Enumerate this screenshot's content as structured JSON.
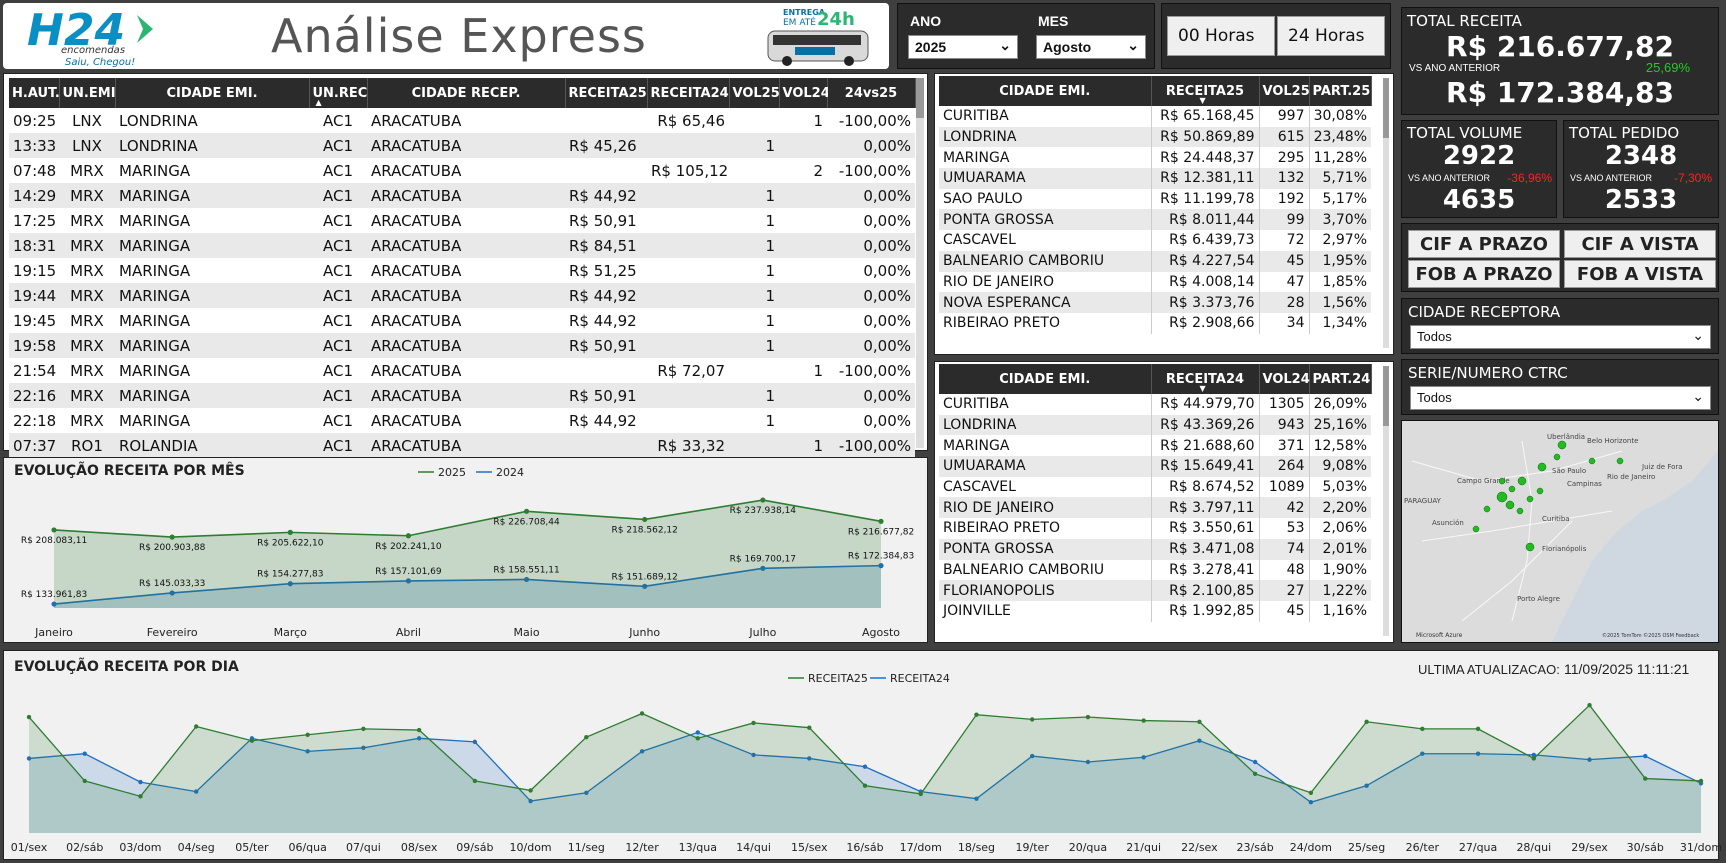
{
  "header": {
    "logo_text": "H24",
    "logo_sub": "encomendas",
    "logo_tag": "Saiu, Chegou!",
    "title": "Análise Express",
    "bus_promo_line1": "ENTREGA",
    "bus_promo_line2": "EM ATÉ",
    "bus_promo_hours": "24h"
  },
  "filters": {
    "ano_label": "ANO",
    "ano_value": "2025",
    "mes_label": "MES",
    "mes_value": "Agosto",
    "btn_00": "00 Horas",
    "btn_24": "24 Horas"
  },
  "kpis": {
    "receita_title": "TOTAL RECEITA",
    "receita_value": "R$ 216.677,82",
    "receita_vs_label": "VS ANO ANTERIOR",
    "receita_vs_pct": "25,69%",
    "receita_prev": "R$ 172.384,83",
    "volume_title": "TOTAL VOLUME",
    "volume_value": "2922",
    "volume_vs_label": "VS ANO ANTERIOR",
    "volume_vs_pct": "-36,96%",
    "volume_prev": "4635",
    "pedido_title": "TOTAL PEDIDO",
    "pedido_value": "2348",
    "pedido_vs_label": "VS ANO ANTERIOR",
    "pedido_vs_pct": "-7,30%",
    "pedido_prev": "2533",
    "colors": {
      "positive": "#22cc22",
      "negative": "#ff2222"
    }
  },
  "payment_buttons": [
    "CIF A PRAZO",
    "CIF A VISTA",
    "FOB A PRAZO",
    "FOB A VISTA"
  ],
  "cidade_receptora": {
    "label": "CIDADE RECEPTORA",
    "value": "Todos"
  },
  "serie_ctrc": {
    "label": "SERIE/NUMERO CTRC",
    "value": "Todos"
  },
  "map": {
    "credit_left": "Microsoft Azure",
    "credit_right": "©2025 TomTom ©2025 OSM Feedback",
    "labels": [
      "Uberlândia",
      "Belo Horizonte",
      "Campo Grande",
      "São Paulo",
      "Campinas",
      "Rio de Janeiro",
      "PARAGUAY",
      "Asunción",
      "Curitiba",
      "Florianópolis",
      "Porto Alegre",
      "Juiz de Fora"
    ]
  },
  "main_table": {
    "columns": [
      "H.AUT.",
      "UN.EMI.",
      "CIDADE EMI.",
      "UN.REC.",
      "CIDADE RECEP.",
      "RECEITA25",
      "RECEITA24",
      "VOL25",
      "VOL24",
      "24vs25"
    ],
    "rows": [
      [
        "09:25",
        "LNX",
        "LONDRINA",
        "AC1",
        "ARACATUBA",
        "",
        "R$ 65,46",
        "",
        "1",
        "-100,00%"
      ],
      [
        "13:33",
        "LNX",
        "LONDRINA",
        "AC1",
        "ARACATUBA",
        "R$ 45,26",
        "",
        "1",
        "",
        "0,00%"
      ],
      [
        "07:48",
        "MRX",
        "MARINGA",
        "AC1",
        "ARACATUBA",
        "",
        "R$ 105,12",
        "",
        "2",
        "-100,00%"
      ],
      [
        "14:29",
        "MRX",
        "MARINGA",
        "AC1",
        "ARACATUBA",
        "R$ 44,92",
        "",
        "1",
        "",
        "0,00%"
      ],
      [
        "17:25",
        "MRX",
        "MARINGA",
        "AC1",
        "ARACATUBA",
        "R$ 50,91",
        "",
        "1",
        "",
        "0,00%"
      ],
      [
        "18:31",
        "MRX",
        "MARINGA",
        "AC1",
        "ARACATUBA",
        "R$ 84,51",
        "",
        "1",
        "",
        "0,00%"
      ],
      [
        "19:15",
        "MRX",
        "MARINGA",
        "AC1",
        "ARACATUBA",
        "R$ 51,25",
        "",
        "1",
        "",
        "0,00%"
      ],
      [
        "19:44",
        "MRX",
        "MARINGA",
        "AC1",
        "ARACATUBA",
        "R$ 44,92",
        "",
        "1",
        "",
        "0,00%"
      ],
      [
        "19:45",
        "MRX",
        "MARINGA",
        "AC1",
        "ARACATUBA",
        "R$ 44,92",
        "",
        "1",
        "",
        "0,00%"
      ],
      [
        "19:58",
        "MRX",
        "MARINGA",
        "AC1",
        "ARACATUBA",
        "R$ 50,91",
        "",
        "1",
        "",
        "0,00%"
      ],
      [
        "21:54",
        "MRX",
        "MARINGA",
        "AC1",
        "ARACATUBA",
        "",
        "R$ 72,07",
        "",
        "1",
        "-100,00%"
      ],
      [
        "22:16",
        "MRX",
        "MARINGA",
        "AC1",
        "ARACATUBA",
        "R$ 50,91",
        "",
        "1",
        "",
        "0,00%"
      ],
      [
        "22:18",
        "MRX",
        "MARINGA",
        "AC1",
        "ARACATUBA",
        "R$ 44,92",
        "",
        "1",
        "",
        "0,00%"
      ],
      [
        "07:37",
        "RO1",
        "ROLANDIA",
        "AC1",
        "ARACATUBA",
        "",
        "R$ 33,32",
        "",
        "1",
        "-100,00%"
      ]
    ]
  },
  "table25": {
    "columns": [
      "CIDADE EMI.",
      "RECEITA25",
      "VOL25",
      "PART.25"
    ],
    "rows": [
      [
        "CURITIBA",
        "R$ 65.168,45",
        "997",
        "30,08%"
      ],
      [
        "LONDRINA",
        "R$ 50.869,89",
        "615",
        "23,48%"
      ],
      [
        "MARINGA",
        "R$ 24.448,37",
        "295",
        "11,28%"
      ],
      [
        "UMUARAMA",
        "R$ 12.381,11",
        "132",
        "5,71%"
      ],
      [
        "SAO PAULO",
        "R$ 11.199,78",
        "192",
        "5,17%"
      ],
      [
        "PONTA GROSSA",
        "R$ 8.011,44",
        "99",
        "3,70%"
      ],
      [
        "CASCAVEL",
        "R$ 6.439,73",
        "72",
        "2,97%"
      ],
      [
        "BALNEARIO CAMBORIU",
        "R$ 4.227,54",
        "45",
        "1,95%"
      ],
      [
        "RIO DE JANEIRO",
        "R$ 4.008,14",
        "47",
        "1,85%"
      ],
      [
        "NOVA ESPERANCA",
        "R$ 3.373,76",
        "28",
        "1,56%"
      ],
      [
        "RIBEIRAO PRETO",
        "R$ 2.908,66",
        "34",
        "1,34%"
      ]
    ]
  },
  "table24": {
    "columns": [
      "CIDADE EMI.",
      "RECEITA24",
      "VOL24",
      "PART.24"
    ],
    "rows": [
      [
        "CURITIBA",
        "R$ 44.979,70",
        "1305",
        "26,09%"
      ],
      [
        "LONDRINA",
        "R$ 43.369,26",
        "943",
        "25,16%"
      ],
      [
        "MARINGA",
        "R$ 21.688,60",
        "371",
        "12,58%"
      ],
      [
        "UMUARAMA",
        "R$ 15.649,41",
        "264",
        "9,08%"
      ],
      [
        "CASCAVEL",
        "R$ 8.674,52",
        "1089",
        "5,03%"
      ],
      [
        "RIO DE JANEIRO",
        "R$ 3.797,11",
        "42",
        "2,20%"
      ],
      [
        "RIBEIRAO PRETO",
        "R$ 3.550,61",
        "53",
        "2,06%"
      ],
      [
        "PONTA GROSSA",
        "R$ 3.471,08",
        "74",
        "2,01%"
      ],
      [
        "BALNEARIO CAMBORIU",
        "R$ 3.278,41",
        "48",
        "1,90%"
      ],
      [
        "FLORIANOPOLIS",
        "R$ 2.100,85",
        "27",
        "1,22%"
      ],
      [
        "JOINVILLE",
        "R$ 1.992,85",
        "45",
        "1,16%"
      ]
    ]
  },
  "monthly_chart": {
    "title": "EVOLUÇÃO RECEITA POR MÊS",
    "legend": [
      "2025",
      "2024"
    ],
    "colors": {
      "2025": "#2e7d32",
      "2024": "#1f6fc0"
    },
    "categories": [
      "Janeiro",
      "Fevereiro",
      "Março",
      "Abril",
      "Maio",
      "Junho",
      "Julho",
      "Agosto"
    ],
    "series_2025": [
      208083.11,
      200903.88,
      205622.1,
      202241.1,
      226708.44,
      218562.12,
      237938.14,
      216677.82
    ],
    "series_2024": [
      133961.83,
      145033.33,
      154277.83,
      157101.69,
      158551.11,
      151689.12,
      169700.17,
      172384.83
    ],
    "labels_2025": [
      "R$ 208.083,11",
      "R$ 200.903,88",
      "R$ 205.622,10",
      "R$ 202.241,10",
      "R$ 226.708,44",
      "R$ 218.562,12",
      "R$ 237.938,14",
      "R$ 216.677,82"
    ],
    "labels_2024": [
      "R$ 133.961,83",
      "R$ 145.033,33",
      "R$ 154.277,83",
      "R$ 157.101,69",
      "R$ 158.551,11",
      "R$ 151.689,12",
      "R$ 169.700,17",
      "R$ 172.384,83"
    ]
  },
  "daily_chart": {
    "title": "EVOLUÇÃO RECEITA POR DIA",
    "legend": [
      "RECEITA25",
      "RECEITA24"
    ],
    "colors": {
      "RECEITA25": "#2e7d32",
      "RECEITA24": "#1f6fc0"
    },
    "last_update_label": "ULTIMA ATUALIZACAO:",
    "last_update_value": "11/09/2025 11:11:21",
    "categories": [
      "01/sex",
      "02/sáb",
      "03/dom",
      "04/seg",
      "05/ter",
      "06/qua",
      "07/qui",
      "08/sex",
      "09/sáb",
      "10/dom",
      "11/seg",
      "12/ter",
      "13/qua",
      "14/qui",
      "15/sex",
      "16/sáb",
      "17/dom",
      "18/seg",
      "19/ter",
      "20/qua",
      "21/qui",
      "22/sex",
      "23/sáb",
      "24/dom",
      "25/seg",
      "26/ter",
      "27/qua",
      "28/qui",
      "29/sex",
      "30/sáb",
      "31/dom"
    ],
    "receita25": [
      9800,
      4400,
      3100,
      9000,
      7800,
      8300,
      8800,
      8700,
      4400,
      3600,
      8100,
      10100,
      8000,
      9300,
      8900,
      4000,
      3300,
      10000,
      9600,
      9800,
      9500,
      9400,
      5000,
      3400,
      9400,
      8800,
      8800,
      6300,
      10800,
      4600,
      4400
    ],
    "receita24": [
      6300,
      6700,
      4300,
      3500,
      8000,
      6900,
      7200,
      8000,
      7700,
      2700,
      3400,
      6900,
      8500,
      6600,
      6300,
      5600,
      3500,
      2900,
      6500,
      6000,
      6400,
      7800,
      6000,
      2600,
      4000,
      6700,
      6700,
      6600,
      6200,
      6500,
      4200
    ]
  }
}
